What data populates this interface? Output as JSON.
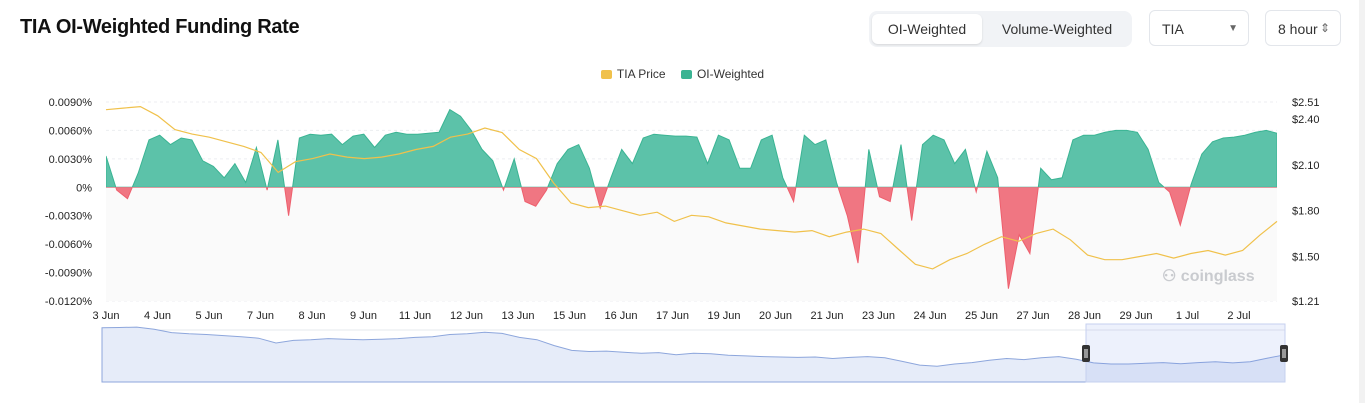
{
  "header": {
    "title": "TIA OI-Weighted Funding Rate",
    "toggle": [
      "OI-Weighted",
      "Volume-Weighted"
    ],
    "coin_select": "TIA",
    "interval_select": "8 hour"
  },
  "watermark": "coinglass",
  "colors": {
    "price": "#f0c14b",
    "positive": "#3ab493",
    "positive_fill": "#5cc2a9",
    "negative": "#ee5f6d",
    "negative_fill": "#f07682",
    "navigator": "#8da6dc"
  },
  "chart_data": {
    "type": "area",
    "title": "",
    "legend": [
      "TIA Price",
      "OI-Weighted"
    ],
    "legend_position": "top-center",
    "x_tick_labels": [
      "3 Jun",
      "4 Jun",
      "5 Jun",
      "7 Jun",
      "8 Jun",
      "9 Jun",
      "11 Jun",
      "12 Jun",
      "13 Jun",
      "15 Jun",
      "16 Jun",
      "17 Jun",
      "19 Jun",
      "20 Jun",
      "21 Jun",
      "23 Jun",
      "24 Jun",
      "25 Jun",
      "27 Jun",
      "28 Jun",
      "29 Jun",
      "1 Jul",
      "2 Jul"
    ],
    "y_left_ticks": [
      "0.0090%",
      "0.0060%",
      "0.0030%",
      "0%",
      "-0.0030%",
      "-0.0060%",
      "-0.0090%",
      "-0.0120%"
    ],
    "y_left_range": [
      -0.012,
      0.009
    ],
    "y_right_ticks": [
      "$2.51",
      "$2.40",
      "$2.10",
      "$1.80",
      "$1.50",
      "$1.21"
    ],
    "grid": true,
    "series": [
      {
        "name": "OI-Weighted",
        "unit": "%",
        "values": [
          0.0033,
          -0.0003,
          -0.0012,
          0.0015,
          0.005,
          0.0055,
          0.0045,
          0.0052,
          0.005,
          0.0028,
          0.0022,
          0.001,
          0.0025,
          0.0005,
          0.0042,
          -0.0003,
          0.005,
          -0.003,
          0.0052,
          0.0056,
          0.0055,
          0.0056,
          0.0045,
          0.0054,
          0.0056,
          0.0042,
          0.0055,
          0.0058,
          0.0056,
          0.0056,
          0.0057,
          0.0058,
          0.0082,
          0.0075,
          0.006,
          0.004,
          0.0028,
          -0.0003,
          0.003,
          -0.0015,
          -0.002,
          -0.0003,
          0.0025,
          0.004,
          0.0045,
          0.002,
          -0.0022,
          0.001,
          0.004,
          0.0025,
          0.0052,
          0.0056,
          0.0055,
          0.0054,
          0.0054,
          0.0053,
          0.0025,
          0.0055,
          0.005,
          0.002,
          0.002,
          0.005,
          0.0055,
          0.001,
          -0.0015,
          0.0055,
          0.0045,
          0.005,
          0.0005,
          -0.003,
          -0.008,
          0.004,
          -0.001,
          -0.0015,
          0.0045,
          -0.0035,
          0.0045,
          0.0055,
          0.005,
          0.0025,
          0.004,
          -0.0005,
          0.0038,
          0.001,
          -0.0107,
          -0.005,
          -0.007,
          0.002,
          0.0008,
          0.001,
          0.005,
          0.0055,
          0.0055,
          0.0058,
          0.006,
          0.006,
          0.0058,
          0.004,
          0.0005,
          -0.0005,
          -0.004,
          0.0003,
          0.0035,
          0.0048,
          0.0052,
          0.0053,
          0.0055,
          0.0058,
          0.006,
          0.0057
        ]
      },
      {
        "name": "TIA Price",
        "unit": "$",
        "values": [
          2.46,
          2.47,
          2.48,
          2.42,
          2.33,
          2.3,
          2.28,
          2.25,
          2.22,
          2.18,
          2.05,
          2.12,
          2.14,
          2.17,
          2.15,
          2.14,
          2.15,
          2.17,
          2.2,
          2.22,
          2.28,
          2.3,
          2.34,
          2.31,
          2.2,
          2.14,
          1.98,
          1.85,
          1.82,
          1.83,
          1.8,
          1.77,
          1.79,
          1.73,
          1.77,
          1.76,
          1.72,
          1.7,
          1.68,
          1.67,
          1.66,
          1.67,
          1.63,
          1.66,
          1.68,
          1.65,
          1.55,
          1.45,
          1.42,
          1.48,
          1.52,
          1.58,
          1.63,
          1.6,
          1.65,
          1.68,
          1.61,
          1.51,
          1.48,
          1.48,
          1.5,
          1.52,
          1.49,
          1.52,
          1.54,
          1.51,
          1.54,
          1.64,
          1.73
        ]
      }
    ]
  }
}
